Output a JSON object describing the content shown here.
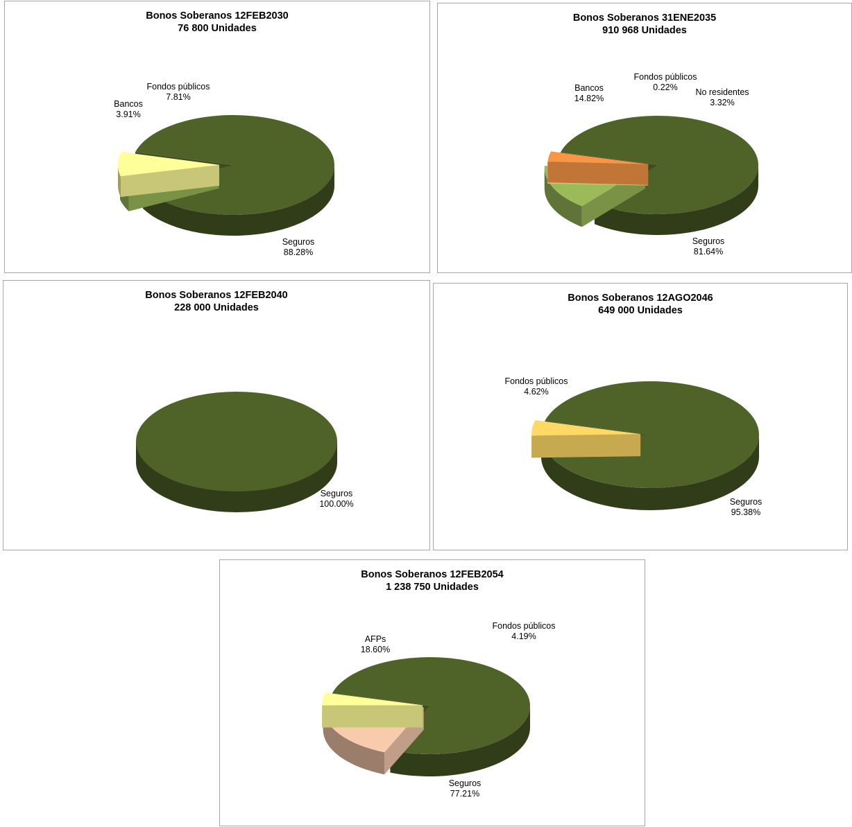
{
  "chart_data": [
    {
      "type": "pie",
      "title": "Bonos Soberanos 12FEB2030",
      "subtitle": "76 800 Unidades",
      "slices": [
        {
          "name": "Seguros",
          "value": 88.28,
          "label": "88.28%",
          "color": "#4f6228"
        },
        {
          "name": "Bancos",
          "value": 3.91,
          "label": "3.91%",
          "color": "#9bbb59"
        },
        {
          "name": "Fondos públicos",
          "value": 7.81,
          "label": "7.81%",
          "color": "#ffff99"
        }
      ]
    },
    {
      "type": "pie",
      "title": "Bonos Soberanos 31ENE2035",
      "subtitle": "910 968 Unidades",
      "slices": [
        {
          "name": "Seguros",
          "value": 81.64,
          "label": "81.64%",
          "color": "#4f6228"
        },
        {
          "name": "Bancos",
          "value": 14.82,
          "label": "14.82%",
          "color": "#9bbb59"
        },
        {
          "name": "Fondos públicos",
          "value": 0.22,
          "label": "0.22%",
          "color": "#ffff99"
        },
        {
          "name": "No residentes",
          "value": 3.32,
          "label": "3.32%",
          "color": "#f79646"
        }
      ]
    },
    {
      "type": "pie",
      "title": "Bonos Soberanos 12FEB2040",
      "subtitle": "228 000 Unidades",
      "slices": [
        {
          "name": "Seguros",
          "value": 100.0,
          "label": "100.00%",
          "color": "#4f6228"
        }
      ]
    },
    {
      "type": "pie",
      "title": "Bonos Soberanos 12AGO2046",
      "subtitle": "649 000 Unidades",
      "slices": [
        {
          "name": "Seguros",
          "value": 95.38,
          "label": "95.38%",
          "color": "#4f6228"
        },
        {
          "name": "Fondos públicos",
          "value": 4.62,
          "label": "4.62%",
          "color": "#ffd966"
        }
      ]
    },
    {
      "type": "pie",
      "title": "Bonos Soberanos 12FEB2054",
      "subtitle": "1 238 750 Unidades",
      "slices": [
        {
          "name": "Seguros",
          "value": 77.21,
          "label": "77.21%",
          "color": "#4f6228"
        },
        {
          "name": "AFPs",
          "value": 18.6,
          "label": "18.60%",
          "color": "#f8cbad"
        },
        {
          "name": "Fondos públicos",
          "value": 4.19,
          "label": "4.19%",
          "color": "#ffff99"
        }
      ]
    }
  ]
}
